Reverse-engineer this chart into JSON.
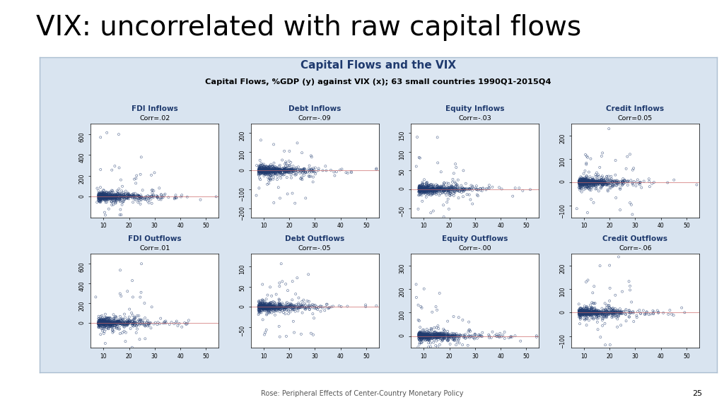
{
  "title": "VIX: uncorrelated with raw capital flows",
  "inner_title": "Capital Flows and the VIX",
  "inner_subtitle": "Capital Flows, %GDP (y) against VIX (x); 63 small countries 1990Q1-2015Q4",
  "footer": "Rose: Peripheral Effects of Center-Country Monetary Policy",
  "page_number": "25",
  "background_color": "#ffffff",
  "panel_bg": "#d9e4f0",
  "scatter_color": "#1f3a6e",
  "title_color": "#1f3a6e",
  "panels": [
    {
      "title": "FDI Inflows",
      "corr": "Corr=.02",
      "row": 0,
      "col": 0,
      "ylim": [
        -200,
        700
      ],
      "yticks": [
        0,
        200,
        400,
        600
      ]
    },
    {
      "title": "Debt Inflows",
      "corr": "Corr=-.09",
      "row": 0,
      "col": 1,
      "ylim": [
        -250,
        250
      ],
      "yticks": [
        -200,
        -100,
        0,
        100,
        200
      ]
    },
    {
      "title": "Equity Inflows",
      "corr": "Corr=-.03",
      "row": 0,
      "col": 2,
      "ylim": [
        -75,
        175
      ],
      "yticks": [
        -50,
        0,
        50,
        100,
        150
      ]
    },
    {
      "title": "Credit Inflows",
      "corr": "Corr=0.05",
      "row": 0,
      "col": 3,
      "ylim": [
        -150,
        250
      ],
      "yticks": [
        -100,
        0,
        100,
        200
      ]
    },
    {
      "title": "FDI Outflows",
      "corr": "Corr=.01",
      "row": 1,
      "col": 0,
      "ylim": [
        -250,
        700
      ],
      "yticks": [
        0,
        200,
        400,
        600
      ]
    },
    {
      "title": "Debt Outflows",
      "corr": "Corr=-.05",
      "row": 1,
      "col": 1,
      "ylim": [
        -100,
        130
      ],
      "yticks": [
        -50,
        0,
        50,
        100
      ]
    },
    {
      "title": "Equity Outflows",
      "corr": "Corr=-.00",
      "row": 1,
      "col": 2,
      "ylim": [
        -50,
        350
      ],
      "yticks": [
        0,
        100,
        200,
        300
      ]
    },
    {
      "title": "Credit Outflows",
      "corr": "Corr=-.06",
      "row": 1,
      "col": 3,
      "ylim": [
        -150,
        250
      ],
      "yticks": [
        -100,
        0,
        100,
        200
      ]
    }
  ],
  "xlim": [
    5,
    55
  ],
  "xticks": [
    10,
    20,
    30,
    40,
    50
  ],
  "seed": 42,
  "n_core": 600,
  "n_outliers": 30
}
